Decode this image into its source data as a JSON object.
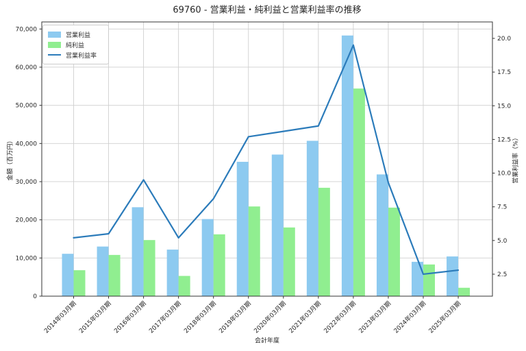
{
  "title": "69760 - 営業利益・純利益と営業利益率の推移",
  "chart_data": {
    "type": "bar",
    "title": "69760 - 営業利益・純利益と営業利益率の推移",
    "xlabel": "会計年度",
    "ylabel_left": "金額（百万円）",
    "ylabel_right": "営業利益率（%）",
    "categories": [
      "2014年03月期",
      "2015年03月期",
      "2016年03月期",
      "2017年03月期",
      "2018年03月期",
      "2019年03月期",
      "2020年03月期",
      "2021年03月期",
      "2022年03月期",
      "2023年03月期",
      "2024年03月期",
      "2025年03月期"
    ],
    "series": [
      {
        "name": "営業利益",
        "type": "bar",
        "axis": "left",
        "color": "#8dcaf0",
        "values": [
          11100,
          13000,
          23300,
          12200,
          20200,
          35200,
          37100,
          40700,
          68300,
          31900,
          9000,
          10400
        ]
      },
      {
        "name": "純利益",
        "type": "bar",
        "axis": "left",
        "color": "#90ee90",
        "values": [
          6800,
          10800,
          14700,
          5300,
          16200,
          23500,
          18000,
          28400,
          54400,
          23200,
          8300,
          2200
        ]
      },
      {
        "name": "営業利益率",
        "type": "line",
        "axis": "right",
        "color": "#2b7bba",
        "values": [
          5.2,
          5.5,
          9.5,
          5.2,
          8.1,
          12.7,
          13.1,
          13.5,
          19.5,
          9.3,
          2.5,
          2.8
        ]
      }
    ],
    "yticks_left": [
      0,
      10000,
      20000,
      30000,
      40000,
      50000,
      60000,
      70000
    ],
    "yticks_right": [
      2.5,
      5.0,
      7.5,
      10.0,
      12.5,
      15.0,
      17.5,
      20.0
    ],
    "ylim_left": [
      0,
      71850
    ],
    "ylim_right": [
      0.87,
      21.22
    ],
    "grid": true,
    "legend_position": "upper left"
  }
}
